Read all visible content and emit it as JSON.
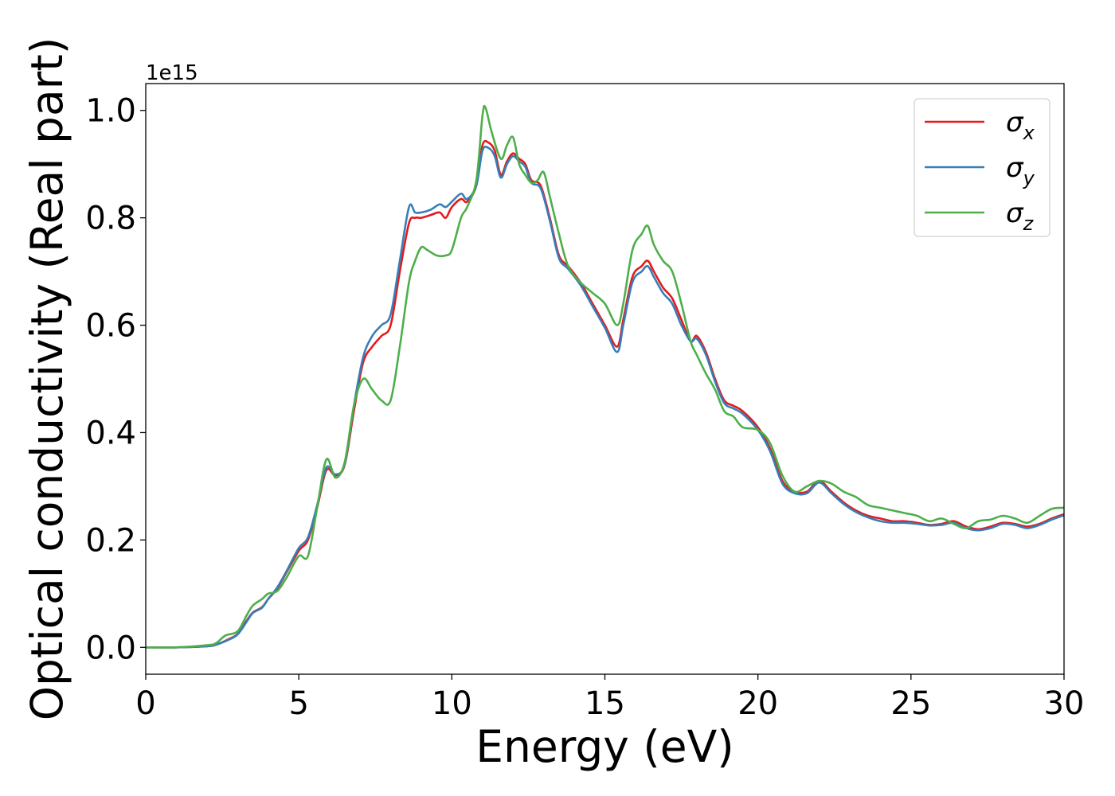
{
  "chart_data": {
    "type": "line",
    "title": "",
    "xlabel": "Energy (eV)",
    "ylabel": "Optical conductivity (Real part)",
    "offset_text": "1e15",
    "xlim": [
      0,
      30
    ],
    "ylim": [
      -0.05,
      1.05
    ],
    "xticks": [
      0,
      5,
      10,
      15,
      20,
      25,
      30
    ],
    "xtick_labels": [
      "0",
      "5",
      "10",
      "15",
      "20",
      "25",
      "30"
    ],
    "yticks": [
      0.0,
      0.2,
      0.4,
      0.6,
      0.8,
      1.0
    ],
    "ytick_labels": [
      "0.0",
      "0.2",
      "0.4",
      "0.6",
      "0.8",
      "1.0"
    ],
    "grid": false,
    "legend_position": "top-right",
    "series": [
      {
        "name": "σx",
        "legend_base": "σ",
        "legend_sub": "x",
        "color": "#e41a1c",
        "x": [
          0,
          1,
          2,
          2.3,
          2.7,
          3.0,
          3.3,
          3.5,
          3.8,
          4.0,
          4.3,
          4.6,
          5.0,
          5.3,
          5.6,
          5.9,
          6.2,
          6.5,
          6.8,
          7.1,
          7.4,
          7.7,
          8.0,
          8.3,
          8.6,
          8.8,
          9.0,
          9.3,
          9.6,
          9.8,
          10.0,
          10.3,
          10.5,
          10.8,
          11.0,
          11.2,
          11.4,
          11.6,
          11.8,
          12.0,
          12.2,
          12.4,
          12.6,
          12.9,
          13.2,
          13.5,
          13.8,
          14.2,
          14.6,
          15.0,
          15.4,
          15.6,
          15.9,
          16.2,
          16.4,
          16.6,
          16.9,
          17.2,
          17.5,
          17.8,
          18.0,
          18.3,
          18.6,
          18.9,
          19.2,
          19.5,
          20.0,
          20.4,
          20.8,
          21.2,
          21.6,
          22.0,
          22.4,
          22.8,
          23.2,
          23.6,
          24.0,
          24.4,
          24.8,
          25.2,
          25.6,
          26.0,
          26.4,
          26.8,
          27.2,
          27.6,
          28.0,
          28.4,
          28.8,
          29.2,
          29.6,
          30.0
        ],
        "y": [
          0,
          0,
          0.002,
          0.005,
          0.015,
          0.025,
          0.05,
          0.065,
          0.075,
          0.09,
          0.11,
          0.14,
          0.18,
          0.2,
          0.26,
          0.33,
          0.32,
          0.34,
          0.44,
          0.53,
          0.56,
          0.58,
          0.6,
          0.7,
          0.79,
          0.8,
          0.8,
          0.805,
          0.81,
          0.8,
          0.82,
          0.835,
          0.83,
          0.86,
          0.935,
          0.94,
          0.925,
          0.88,
          0.905,
          0.92,
          0.91,
          0.9,
          0.87,
          0.86,
          0.8,
          0.73,
          0.71,
          0.68,
          0.64,
          0.6,
          0.56,
          0.61,
          0.69,
          0.71,
          0.72,
          0.7,
          0.67,
          0.65,
          0.61,
          0.57,
          0.58,
          0.55,
          0.5,
          0.46,
          0.45,
          0.44,
          0.41,
          0.37,
          0.31,
          0.29,
          0.29,
          0.31,
          0.29,
          0.27,
          0.255,
          0.245,
          0.24,
          0.235,
          0.235,
          0.232,
          0.228,
          0.23,
          0.235,
          0.225,
          0.22,
          0.225,
          0.232,
          0.23,
          0.225,
          0.23,
          0.24,
          0.248
        ]
      },
      {
        "name": "σy",
        "legend_base": "σ",
        "legend_sub": "y",
        "color": "#377eb8",
        "x": [
          0,
          1,
          2,
          2.3,
          2.7,
          3.0,
          3.3,
          3.5,
          3.8,
          4.0,
          4.3,
          4.6,
          5.0,
          5.3,
          5.6,
          5.9,
          6.2,
          6.5,
          6.8,
          7.1,
          7.4,
          7.7,
          8.0,
          8.3,
          8.6,
          8.8,
          9.0,
          9.3,
          9.6,
          9.8,
          10.0,
          10.3,
          10.5,
          10.8,
          11.0,
          11.2,
          11.4,
          11.6,
          11.8,
          12.0,
          12.2,
          12.4,
          12.6,
          12.9,
          13.2,
          13.5,
          13.8,
          14.2,
          14.6,
          15.0,
          15.4,
          15.6,
          15.9,
          16.2,
          16.4,
          16.6,
          16.9,
          17.2,
          17.5,
          17.8,
          18.0,
          18.3,
          18.6,
          18.9,
          19.2,
          19.5,
          20.0,
          20.4,
          20.8,
          21.2,
          21.6,
          22.0,
          22.4,
          22.8,
          23.2,
          23.6,
          24.0,
          24.4,
          24.8,
          25.2,
          25.6,
          26.0,
          26.4,
          26.8,
          27.2,
          27.6,
          28.0,
          28.4,
          28.8,
          29.2,
          29.6,
          30.0
        ],
        "y": [
          0,
          0,
          0.002,
          0.005,
          0.014,
          0.024,
          0.048,
          0.064,
          0.074,
          0.09,
          0.112,
          0.142,
          0.185,
          0.205,
          0.265,
          0.335,
          0.322,
          0.342,
          0.45,
          0.54,
          0.58,
          0.6,
          0.62,
          0.72,
          0.82,
          0.81,
          0.81,
          0.815,
          0.825,
          0.82,
          0.83,
          0.845,
          0.835,
          0.86,
          0.925,
          0.93,
          0.915,
          0.875,
          0.9,
          0.915,
          0.905,
          0.895,
          0.865,
          0.855,
          0.795,
          0.725,
          0.705,
          0.675,
          0.635,
          0.595,
          0.55,
          0.6,
          0.68,
          0.7,
          0.71,
          0.69,
          0.66,
          0.64,
          0.6,
          0.57,
          0.575,
          0.545,
          0.495,
          0.455,
          0.445,
          0.435,
          0.405,
          0.365,
          0.305,
          0.287,
          0.287,
          0.307,
          0.287,
          0.267,
          0.252,
          0.242,
          0.235,
          0.232,
          0.232,
          0.23,
          0.227,
          0.228,
          0.232,
          0.222,
          0.218,
          0.222,
          0.23,
          0.228,
          0.222,
          0.228,
          0.238,
          0.246
        ]
      },
      {
        "name": "σz",
        "legend_base": "σ",
        "legend_sub": "z",
        "color": "#4daf4a",
        "x": [
          0,
          1,
          2,
          2.3,
          2.6,
          3.0,
          3.3,
          3.5,
          3.8,
          4.0,
          4.3,
          4.6,
          5.0,
          5.3,
          5.6,
          5.9,
          6.2,
          6.5,
          6.8,
          7.1,
          7.4,
          7.7,
          8.0,
          8.3,
          8.6,
          8.8,
          9.0,
          9.2,
          9.5,
          9.8,
          10.0,
          10.3,
          10.5,
          10.8,
          11.0,
          11.1,
          11.3,
          11.6,
          11.8,
          12.0,
          12.2,
          12.4,
          12.6,
          12.8,
          13.0,
          13.2,
          13.5,
          13.8,
          14.2,
          14.6,
          15.0,
          15.4,
          15.6,
          15.9,
          16.2,
          16.4,
          16.6,
          16.9,
          17.2,
          17.5,
          17.8,
          18.0,
          18.3,
          18.6,
          18.9,
          19.2,
          19.5,
          20.0,
          20.4,
          20.8,
          21.2,
          21.6,
          22.0,
          22.4,
          22.8,
          23.2,
          23.6,
          24.0,
          24.4,
          24.8,
          25.2,
          25.6,
          26.0,
          26.4,
          26.8,
          27.2,
          27.6,
          28.0,
          28.4,
          28.8,
          29.2,
          29.6,
          30.0
        ],
        "y": [
          0,
          0,
          0.004,
          0.008,
          0.022,
          0.03,
          0.06,
          0.078,
          0.09,
          0.1,
          0.105,
          0.13,
          0.17,
          0.17,
          0.26,
          0.35,
          0.316,
          0.345,
          0.45,
          0.5,
          0.48,
          0.46,
          0.46,
          0.56,
          0.68,
          0.72,
          0.745,
          0.74,
          0.73,
          0.73,
          0.74,
          0.8,
          0.82,
          0.87,
          0.99,
          1.005,
          0.96,
          0.91,
          0.935,
          0.95,
          0.9,
          0.88,
          0.865,
          0.87,
          0.885,
          0.84,
          0.77,
          0.71,
          0.68,
          0.66,
          0.64,
          0.6,
          0.64,
          0.74,
          0.77,
          0.785,
          0.75,
          0.72,
          0.7,
          0.64,
          0.57,
          0.545,
          0.51,
          0.48,
          0.44,
          0.43,
          0.41,
          0.405,
          0.38,
          0.32,
          0.29,
          0.3,
          0.31,
          0.305,
          0.29,
          0.28,
          0.265,
          0.26,
          0.255,
          0.25,
          0.245,
          0.235,
          0.24,
          0.23,
          0.222,
          0.235,
          0.238,
          0.245,
          0.24,
          0.232,
          0.245,
          0.258,
          0.26
        ]
      }
    ]
  }
}
